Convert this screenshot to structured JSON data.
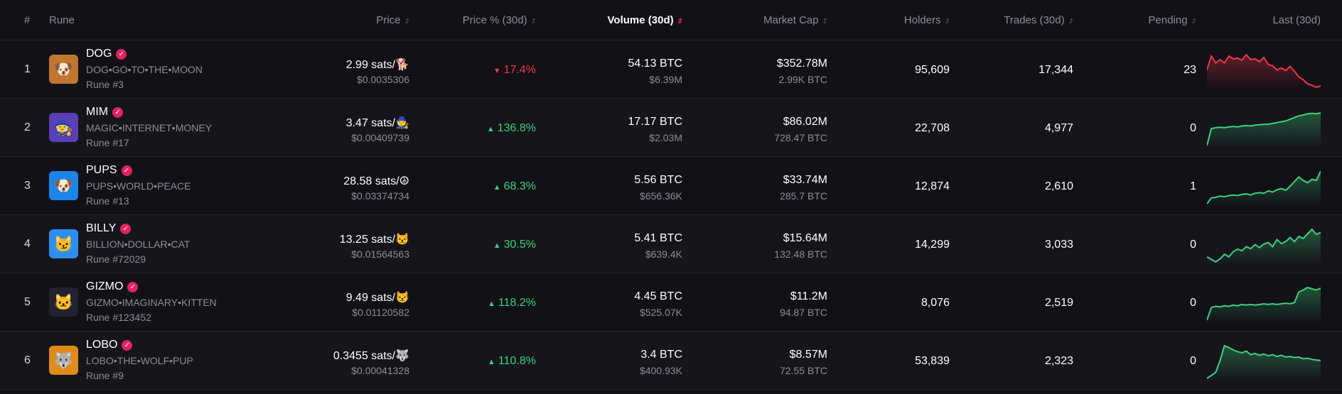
{
  "headers": {
    "num": "#",
    "rune": "Rune",
    "price": "Price",
    "price_pct": "Price % (30d)",
    "volume": "Volume (30d)",
    "market_cap": "Market Cap",
    "holders": "Holders",
    "trades": "Trades (30d)",
    "pending": "Pending",
    "last": "Last (30d)"
  },
  "sort_icon": "updown-arrows-icon",
  "colors": {
    "up": "#3dd17a",
    "down": "#f23645",
    "accent": "#e0245e",
    "background": "#121118"
  },
  "rows": [
    {
      "rank": "1",
      "name": "DOG",
      "spaced": "DOG•GO•TO•THE•MOON",
      "number": "Rune #3",
      "price": "2.99 sats/",
      "symbol": "🐕",
      "price_usd": "$0.0035306",
      "change": "17.4%",
      "dir": "down",
      "volume": "54.13 BTC",
      "volume_usd": "$6.39M",
      "mcap": "$352.78M",
      "mcap_btc": "2.99K BTC",
      "holders": "95,609",
      "trades": "17,344",
      "pending": "23",
      "avatar_bg": "#c0782e",
      "avatar": "🐶",
      "spark": [
        6,
        8,
        7,
        7.5,
        7,
        8,
        7.6,
        7.7,
        7.4,
        8.2,
        7.5,
        7.6,
        7.2,
        7.8,
        6.8,
        6.6,
        6,
        6.3,
        5.9,
        6.5,
        5.8,
        5,
        4.6,
        4,
        3.8,
        3.5,
        3.7
      ]
    },
    {
      "rank": "2",
      "name": "MIM",
      "spaced": "MAGIC•INTERNET•MONEY",
      "number": "Rune #17",
      "price": "3.47 sats/",
      "symbol": "🧙",
      "price_usd": "$0.00409739",
      "change": "136.8%",
      "dir": "up",
      "volume": "17.17 BTC",
      "volume_usd": "$2.03M",
      "mcap": "$86.02M",
      "mcap_btc": "728.47 BTC",
      "holders": "22,708",
      "trades": "4,977",
      "pending": "0",
      "avatar_bg": "#5b3fb5",
      "avatar": "🧙",
      "spark": [
        1,
        5,
        5.2,
        5.3,
        5.2,
        5.4,
        5.5,
        5.4,
        5.6,
        5.7,
        5.6,
        5.8,
        5.9,
        6,
        6,
        6.2,
        6.4,
        6.6,
        6.8,
        7.2,
        7.6,
        8,
        8.2,
        8.5,
        8.6,
        8.5,
        8.7
      ]
    },
    {
      "rank": "3",
      "name": "PUPS",
      "spaced": "PUPS•WORLD•PEACE",
      "number": "Rune #13",
      "price": "28.58 sats/",
      "symbol": "☮",
      "price_usd": "$0.03374734",
      "change": "68.3%",
      "dir": "up",
      "volume": "5.56 BTC",
      "volume_usd": "$656.36K",
      "mcap": "$33.74M",
      "mcap_btc": "285.7 BTC",
      "holders": "12,874",
      "trades": "2,610",
      "pending": "1",
      "avatar_bg": "#1b86e8",
      "avatar": "🐶",
      "spark": [
        1,
        2,
        2.1,
        2.3,
        2.2,
        2.4,
        2.5,
        2.4,
        2.6,
        2.7,
        2.5,
        2.8,
        2.9,
        2.8,
        3.2,
        3,
        3.4,
        3.6,
        3.3,
        4,
        4.8,
        5.6,
        5,
        4.6,
        5.2,
        5,
        6.6
      ]
    },
    {
      "rank": "4",
      "name": "BILLY",
      "spaced": "BILLION•DOLLAR•CAT",
      "number": "Rune #72029",
      "price": "13.25 sats/",
      "symbol": "😾",
      "price_usd": "$0.01564563",
      "change": "30.5%",
      "dir": "up",
      "volume": "5.41 BTC",
      "volume_usd": "$639.4K",
      "mcap": "$15.64M",
      "mcap_btc": "132.48 BTC",
      "holders": "14,299",
      "trades": "3,033",
      "pending": "0",
      "avatar_bg": "#2d8ef0",
      "avatar": "😼",
      "spark": [
        3,
        2.5,
        2,
        2.6,
        3.5,
        3,
        4,
        4.5,
        4.2,
        5,
        4.6,
        5.4,
        4.8,
        5.5,
        5.8,
        5,
        6.4,
        5.6,
        6,
        6.8,
        6,
        7,
        6.6,
        7.5,
        8.4,
        7.4,
        7.8
      ]
    },
    {
      "rank": "5",
      "name": "GIZMO",
      "spaced": "GIZMO•IMAGINARY•KITTEN",
      "number": "Rune #123452",
      "price": "9.49 sats/",
      "symbol": "😾",
      "price_usd": "$0.01120582",
      "change": "118.2%",
      "dir": "up",
      "volume": "4.45 BTC",
      "volume_usd": "$525.07K",
      "mcap": "$11.2M",
      "mcap_btc": "94.87 BTC",
      "holders": "8,076",
      "trades": "2,519",
      "pending": "0",
      "avatar_bg": "#222230",
      "avatar": "🐱",
      "spark": [
        1,
        3,
        3.2,
        3.1,
        3.3,
        3.2,
        3.4,
        3.3,
        3.5,
        3.4,
        3.5,
        3.4,
        3.5,
        3.6,
        3.5,
        3.6,
        3.5,
        3.6,
        3.7,
        3.6,
        3.8,
        5.5,
        5.8,
        6.2,
        6,
        5.8,
        6.1
      ]
    },
    {
      "rank": "6",
      "name": "LOBO",
      "spaced": "LOBO•THE•WOLF•PUP",
      "number": "Rune #9",
      "price": "0.3455 sats/",
      "symbol": "🐺",
      "price_usd": "$0.00041328",
      "change": "110.8%",
      "dir": "up",
      "volume": "3.4 BTC",
      "volume_usd": "$400.93K",
      "mcap": "$8.57M",
      "mcap_btc": "72.55 BTC",
      "holders": "53,839",
      "trades": "2,323",
      "pending": "0",
      "avatar_bg": "#e08a1a",
      "avatar": "🐺",
      "spark": [
        1,
        1.5,
        2,
        4,
        6.5,
        6.2,
        5.8,
        5.5,
        5.3,
        5.6,
        5,
        5.2,
        4.9,
        5.1,
        4.8,
        5,
        4.7,
        4.9,
        4.6,
        4.7,
        4.5,
        4.6,
        4.3,
        4.4,
        4.2,
        4.1,
        4
      ]
    }
  ]
}
